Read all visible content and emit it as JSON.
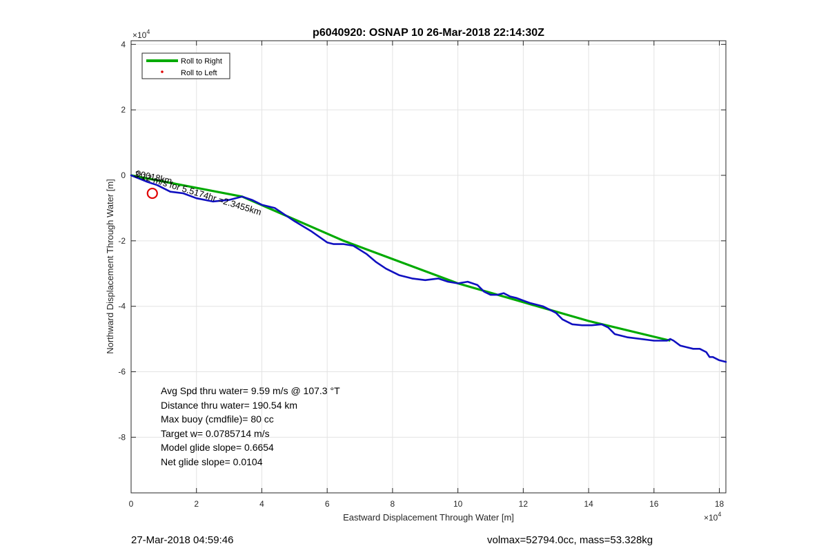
{
  "chart_data": {
    "type": "line",
    "title": "p6040920: OSNAP 10 26-Mar-2018 22:14:30Z",
    "xlabel": "Eastward Displacement Through Water [m]",
    "ylabel": "Northward Displacement Through Water [m]",
    "x_exponent_label": "×10",
    "y_exponent_label": "×10",
    "exponent": "4",
    "xlim": [
      0,
      182000
    ],
    "ylim": [
      -100000,
      41000
    ],
    "xticks": [
      0,
      20000,
      40000,
      60000,
      80000,
      100000,
      120000,
      140000,
      160000,
      180000
    ],
    "xtick_labels": [
      "0",
      "2",
      "4",
      "6",
      "8",
      "10",
      "12",
      "14",
      "16",
      "18"
    ],
    "yticks": [
      -80000,
      -60000,
      -40000,
      -20000,
      0,
      20000,
      40000
    ],
    "ytick_labels": [
      "-8",
      "-6",
      "-4",
      "-2",
      "0",
      "2",
      "4"
    ],
    "grid": true,
    "legend_position": "top-left",
    "series": [
      {
        "name": "Roll to Right",
        "color": "#00aa00",
        "style": "thick-line",
        "x": [
          0,
          34000,
          65000,
          100000,
          140000,
          165000
        ],
        "y": [
          0,
          -6500,
          -20000,
          -33000,
          -44500,
          -50500
        ]
      },
      {
        "name": "Roll to Left",
        "color": "#e00000",
        "style": "dot",
        "x": [],
        "y": []
      },
      {
        "name": "",
        "color": "#1010c0",
        "style": "line",
        "x": [
          0,
          2000,
          5000,
          8000,
          12000,
          16000,
          20000,
          25000,
          30000,
          34000,
          37000,
          40000,
          44000,
          47000,
          50000,
          55000,
          60000,
          62000,
          65000,
          68000,
          72000,
          75000,
          78000,
          82000,
          86000,
          90000,
          94000,
          97000,
          100000,
          103000,
          106000,
          108000,
          110000,
          112000,
          114000,
          116000,
          118000,
          122000,
          126000,
          130000,
          132000,
          135000,
          138000,
          141000,
          144000,
          146000,
          148000,
          152000,
          156000,
          160000,
          164000,
          165000,
          166000,
          168000,
          170000,
          172000,
          174000,
          176000,
          177000,
          178000,
          180000,
          182000
        ],
        "y": [
          0,
          -800,
          -2000,
          -3000,
          -5000,
          -5500,
          -7000,
          -8000,
          -7500,
          -6500,
          -7500,
          -9000,
          -10000,
          -12000,
          -14000,
          -17000,
          -20500,
          -21000,
          -21000,
          -21500,
          -24000,
          -26500,
          -28500,
          -30500,
          -31500,
          -32000,
          -31500,
          -32500,
          -33000,
          -32500,
          -33500,
          -35500,
          -36500,
          -36500,
          -36000,
          -37000,
          -37500,
          -39000,
          -40000,
          -42000,
          -44000,
          -45500,
          -45800,
          -45800,
          -45500,
          -46500,
          -48500,
          -49500,
          -50000,
          -50500,
          -50500,
          -50000,
          -50500,
          -52000,
          -52500,
          -53000,
          -53000,
          -54000,
          -55500,
          -55500,
          -56500,
          -57000
        ]
      }
    ],
    "marker": {
      "x": 6500,
      "y": -5500,
      "color": "#e00000"
    },
    "path_annotation": {
      "x": 800,
      "y": -400,
      "text_overlap": "00018km",
      "text_main": "3:12 m/s for 5.5174hr =2.3455km"
    },
    "stats": [
      "Avg Spd thru water=  9.59 m/s @ 107.3 °T",
      "Distance thru water= 190.54 km",
      "Max buoy (cmdfile)= 80 cc",
      "Target w= 0.0785714 m/s",
      "Model glide slope= 0.6654",
      "Net glide slope= 0.0104"
    ]
  },
  "footer": {
    "timestamp": "27-Mar-2018 04:59:46",
    "mass_info": "volmax=52794.0cc, mass=53.328kg"
  }
}
